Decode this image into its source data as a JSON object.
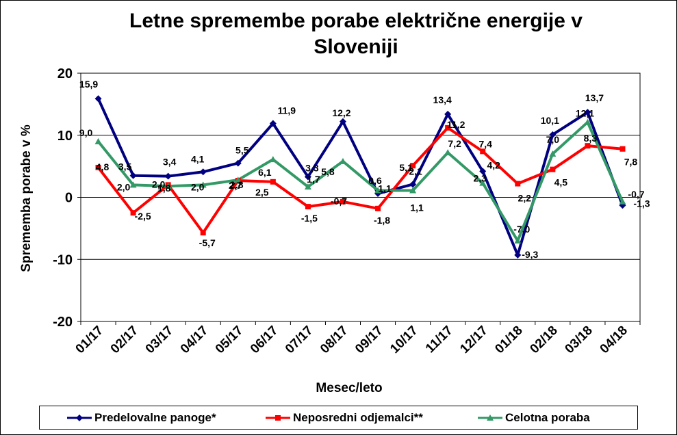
{
  "chart_data": {
    "type": "line",
    "title_line1": "Letne spremembe porabe električne energije v",
    "title_line2": "Sloveniji",
    "xlabel": "Mesec/leto",
    "ylabel": "Sprememba porabe v %",
    "ylim": [
      -20,
      20
    ],
    "yticks": [
      -20,
      -10,
      0,
      10,
      20
    ],
    "grid": "horizontal",
    "legend_position": "bottom",
    "categories": [
      "01/17",
      "02/17",
      "03/17",
      "04/17",
      "05/17",
      "06/17",
      "07/17",
      "08/17",
      "09/17",
      "10/17",
      "11/17",
      "12/17",
      "01/18",
      "02/18",
      "03/18",
      "04/18"
    ],
    "series": [
      {
        "name": "Predelovalne panoge*",
        "color": "#000080",
        "marker": "diamond",
        "values": [
          15.9,
          3.5,
          3.4,
          4.1,
          5.5,
          11.9,
          3.3,
          12.2,
          0.6,
          2.1,
          13.4,
          4.2,
          -9.3,
          10.1,
          13.7,
          -1.3
        ]
      },
      {
        "name": "Neposredni odjemalci**",
        "color": "#ff0000",
        "marker": "square",
        "values": [
          4.8,
          -2.5,
          2.0,
          -5.7,
          2.7,
          2.5,
          -1.5,
          -0.7,
          -1.8,
          5.1,
          11.2,
          7.4,
          2.2,
          4.5,
          8.3,
          7.8
        ]
      },
      {
        "name": "Celotna poraba",
        "color": "#339966",
        "marker": "triangle",
        "values": [
          9.0,
          2.0,
          1.8,
          2.0,
          2.8,
          6.1,
          1.7,
          5.8,
          1.1,
          1.1,
          7.2,
          2.3,
          -7.0,
          7.0,
          12.1,
          -0.7
        ]
      }
    ],
    "data_labels": [
      {
        "text": "15,9",
        "series": 0,
        "index": 0
      },
      {
        "text": "3,5",
        "series": 0,
        "index": 1
      },
      {
        "text": "3,4",
        "series": 0,
        "index": 2
      },
      {
        "text": "4,1",
        "series": 0,
        "index": 3
      },
      {
        "text": "5,5",
        "series": 0,
        "index": 4
      },
      {
        "text": "11,9",
        "series": 0,
        "index": 5
      },
      {
        "text": "3,3",
        "series": 0,
        "index": 6
      },
      {
        "text": "12,2",
        "series": 0,
        "index": 7
      },
      {
        "text": "0,6",
        "series": 0,
        "index": 8
      },
      {
        "text": "2,1",
        "series": 0,
        "index": 9
      },
      {
        "text": "13,4",
        "series": 0,
        "index": 10
      },
      {
        "text": "4,2",
        "series": 0,
        "index": 11
      },
      {
        "text": "-9,3",
        "series": 0,
        "index": 12
      },
      {
        "text": "10,1",
        "series": 0,
        "index": 13
      },
      {
        "text": "13,7",
        "series": 0,
        "index": 14
      },
      {
        "text": "-1,3",
        "series": 0,
        "index": 15
      },
      {
        "text": "4,8",
        "series": 1,
        "index": 0
      },
      {
        "text": "-2,5",
        "series": 1,
        "index": 1
      },
      {
        "text": "2,0",
        "series": 1,
        "index": 2
      },
      {
        "text": "-5,7",
        "series": 1,
        "index": 3
      },
      {
        "text": "2,7",
        "series": 1,
        "index": 4
      },
      {
        "text": "2,5",
        "series": 1,
        "index": 5
      },
      {
        "text": "-1,5",
        "series": 1,
        "index": 6
      },
      {
        "text": "-0,7",
        "series": 1,
        "index": 7
      },
      {
        "text": "-1,8",
        "series": 1,
        "index": 8
      },
      {
        "text": "5,1",
        "series": 1,
        "index": 9
      },
      {
        "text": "11,2",
        "series": 1,
        "index": 10
      },
      {
        "text": "7,4",
        "series": 1,
        "index": 11
      },
      {
        "text": "2,2",
        "series": 1,
        "index": 12
      },
      {
        "text": "4,5",
        "series": 1,
        "index": 13
      },
      {
        "text": "8,3",
        "series": 1,
        "index": 14
      },
      {
        "text": "7,8",
        "series": 1,
        "index": 15
      },
      {
        "text": "9,0",
        "series": 2,
        "index": 0
      },
      {
        "text": "2,0",
        "series": 2,
        "index": 1
      },
      {
        "text": "1,8",
        "series": 2,
        "index": 2
      },
      {
        "text": "2,0",
        "series": 2,
        "index": 3
      },
      {
        "text": "2,8",
        "series": 2,
        "index": 4
      },
      {
        "text": "6,1",
        "series": 2,
        "index": 5
      },
      {
        "text": "1,7",
        "series": 2,
        "index": 6
      },
      {
        "text": "5,8",
        "series": 2,
        "index": 7
      },
      {
        "text": "1,1",
        "series": 2,
        "index": 8
      },
      {
        "text": "1,1",
        "series": 2,
        "index": 9
      },
      {
        "text": "7,2",
        "series": 2,
        "index": 10
      },
      {
        "text": "2,3",
        "series": 2,
        "index": 11
      },
      {
        "text": "-7,0",
        "series": 2,
        "index": 12
      },
      {
        "text": "7,0",
        "series": 2,
        "index": 13
      },
      {
        "text": "12,1",
        "series": 2,
        "index": 14
      },
      {
        "text": "-0,7",
        "series": 2,
        "index": 15
      }
    ]
  },
  "legend": {
    "item1": "Predelovalne panoge*",
    "item2": "Neposredni odjemalci**",
    "item3": "Celotna poraba"
  }
}
